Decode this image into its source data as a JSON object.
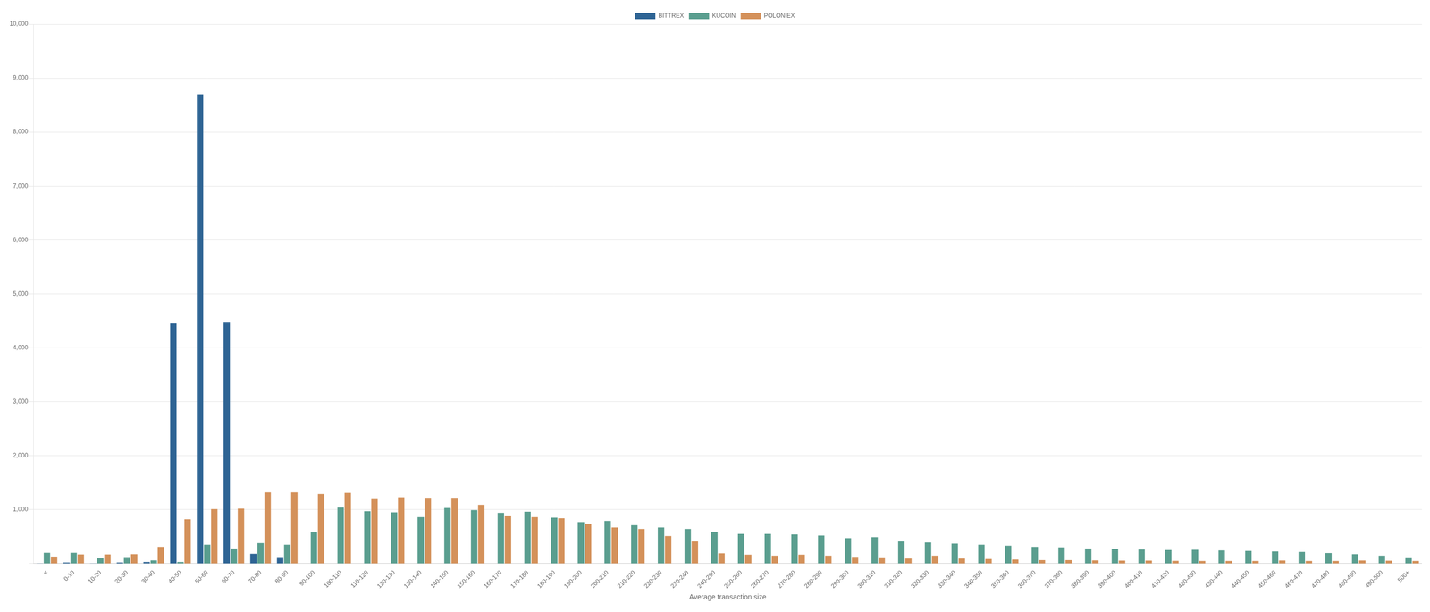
{
  "chart_data": {
    "type": "bar",
    "xlabel": "Average transaction size",
    "categories": [
      "<",
      "0-10",
      "10-20",
      "20-30",
      "30-40",
      "40-50",
      "50-60",
      "60-70",
      "70-80",
      "80-90",
      "90-100",
      "100-110",
      "110-120",
      "120-130",
      "130-140",
      "140-150",
      "150-160",
      "160-170",
      "170-180",
      "180-190",
      "190-200",
      "200-210",
      "210-220",
      "220-230",
      "230-240",
      "240-250",
      "250-260",
      "260-270",
      "270-280",
      "280-290",
      "290-300",
      "300-310",
      "310-320",
      "320-330",
      "330-340",
      "340-350",
      "350-360",
      "360-370",
      "370-380",
      "380-390",
      "390-400",
      "400-410",
      "410-420",
      "420-430",
      "430-440",
      "440-450",
      "450-460",
      "460-470",
      "470-480",
      "480-490",
      "490-500",
      "500+"
    ],
    "series": [
      {
        "name": "BITTREX",
        "color": "#2e6494",
        "values": [
          5,
          20,
          5,
          20,
          30,
          4450,
          8700,
          4480,
          180,
          120,
          0,
          0,
          0,
          0,
          0,
          0,
          0,
          0,
          0,
          0,
          0,
          0,
          0,
          0,
          0,
          0,
          0,
          0,
          0,
          0,
          0,
          0,
          0,
          0,
          0,
          0,
          0,
          0,
          0,
          0,
          0,
          0,
          0,
          0,
          0,
          0,
          0,
          0,
          0,
          0,
          0,
          0
        ]
      },
      {
        "name": "KUCOIN",
        "color": "#5a9e8f",
        "values": [
          200,
          200,
          100,
          120,
          60,
          30,
          350,
          280,
          380,
          350,
          580,
          1040,
          970,
          950,
          860,
          1030,
          990,
          940,
          960,
          850,
          770,
          790,
          710,
          670,
          640,
          590,
          550,
          550,
          540,
          520,
          470,
          490,
          410,
          390,
          370,
          350,
          330,
          310,
          300,
          280,
          270,
          260,
          250,
          255,
          245,
          235,
          225,
          215,
          195,
          175,
          145,
          115
        ]
      },
      {
        "name": "POLONIEX",
        "color": "#d4915a",
        "values": [
          130,
          170,
          170,
          175,
          310,
          820,
          1010,
          1020,
          1320,
          1320,
          1290,
          1310,
          1210,
          1230,
          1220,
          1220,
          1090,
          890,
          860,
          840,
          740,
          670,
          640,
          510,
          410,
          190,
          165,
          145,
          165,
          145,
          125,
          115,
          95,
          145,
          95,
          85,
          75,
          65,
          65,
          60,
          55,
          55,
          50,
          48,
          48,
          48,
          58,
          48,
          48,
          58,
          52,
          48
        ]
      }
    ],
    "ylim": [
      0,
      10000
    ],
    "yticks": [
      {
        "value": 0,
        "label": null
      },
      {
        "value": 1000,
        "label": "1,000"
      },
      {
        "value": 2000,
        "label": "2,000"
      },
      {
        "value": 3000,
        "label": "3,000"
      },
      {
        "value": 4000,
        "label": "4,000"
      },
      {
        "value": 5000,
        "label": "5,000"
      },
      {
        "value": 6000,
        "label": "6,000"
      },
      {
        "value": 7000,
        "label": "7,000"
      },
      {
        "value": 8000,
        "label": "8,000"
      },
      {
        "value": 9000,
        "label": "9,000"
      },
      {
        "value": 10000,
        "label": "10,000"
      }
    ],
    "grid": true,
    "legend": "top"
  }
}
